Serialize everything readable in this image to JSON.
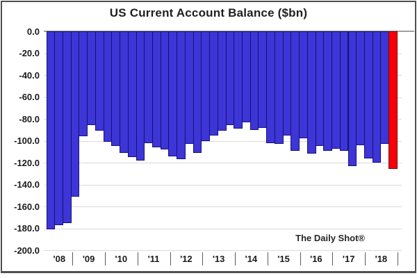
{
  "chart_data": {
    "type": "bar",
    "title": "US Current Account Balance ($bn)",
    "watermark": "The Daily Shot®",
    "ylabel": "",
    "xlabel": "",
    "ylim": [
      0,
      -200
    ],
    "grid": true,
    "y_tick_labels": [
      "0.0",
      "-20.0",
      "-40.0",
      "-60.0",
      "-80.0",
      "-100.0",
      "-120.0",
      "-140.0",
      "-160.0",
      "-180.0",
      "-200.0"
    ],
    "x_year_labels": [
      "'08",
      "'09",
      "'10",
      "'11",
      "'12",
      "'13",
      "'14",
      "'15",
      "'16",
      "'17",
      "'18"
    ],
    "bars_per_year": [
      3,
      4,
      4,
      4,
      4,
      4,
      4,
      4,
      4,
      4,
      4
    ],
    "note": "Quarterly bars, 2008-2018; final bar highlighted red",
    "values": [
      -181,
      -177,
      -175,
      -151,
      -96,
      -86,
      -91,
      -101,
      -105,
      -111,
      -115,
      -118,
      -102,
      -106,
      -108,
      -114,
      -117,
      -103,
      -111,
      -100,
      -95,
      -91,
      -86,
      -89,
      -83,
      -90,
      -88,
      -102,
      -103,
      -95,
      -109,
      -98,
      -112,
      -105,
      -109,
      -107,
      -109,
      -123,
      -104,
      -116,
      -120,
      -103,
      -126
    ],
    "highlight_last": true,
    "colors": {
      "bar_fill": "#3d35d6",
      "bar_border": "#141178",
      "highlight_fill": "#f80007",
      "highlight_border": "#6e0606",
      "gridline": "#d9d9d9",
      "zero_line": "#a0a0a0",
      "text": "#1a1a1a"
    }
  }
}
